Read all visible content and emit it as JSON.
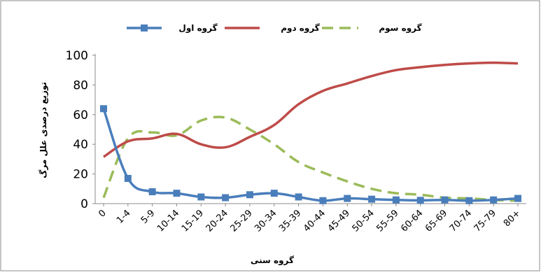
{
  "chart_data": {
    "type": "line",
    "title": "",
    "xlabel": "گروه سنی",
    "ylabel": "توزیع درصدی علل مرگ",
    "ylim": [
      0,
      100
    ],
    "yticks": [
      0,
      20,
      40,
      60,
      80,
      100
    ],
    "grid": false,
    "legend": "top",
    "categories": [
      "0",
      "1-4",
      "5-9",
      "10-14",
      "15-19",
      "20-24",
      "25-29",
      "30-34",
      "35-39",
      "40-44",
      "45-49",
      "50-54",
      "55-59",
      "60-64",
      "65-69",
      "70-74",
      "75-79",
      "80+"
    ],
    "series": [
      {
        "name": "گروه اول",
        "color": "#4a7ebb",
        "style": "solid-square-markers",
        "values": [
          64,
          17,
          8,
          7,
          4.5,
          4,
          6,
          7,
          4.5,
          2,
          3.5,
          3,
          2.5,
          2.2,
          2.5,
          2,
          2.5,
          3.5
        ]
      },
      {
        "name": "گروه دوم",
        "color": "#be4b48",
        "style": "solid",
        "values": [
          31.5,
          42,
          44,
          47,
          40,
          38,
          45,
          53,
          67,
          76,
          81,
          86,
          90,
          92,
          93.5,
          94.5,
          95,
          94.5
        ]
      },
      {
        "name": "گروه سوم",
        "color": "#9bbb59",
        "style": "dashed",
        "values": [
          4,
          44,
          48,
          46,
          56,
          58,
          50,
          40,
          28,
          21,
          15,
          10,
          7,
          6,
          4,
          3.5,
          2.5,
          2
        ]
      }
    ]
  }
}
